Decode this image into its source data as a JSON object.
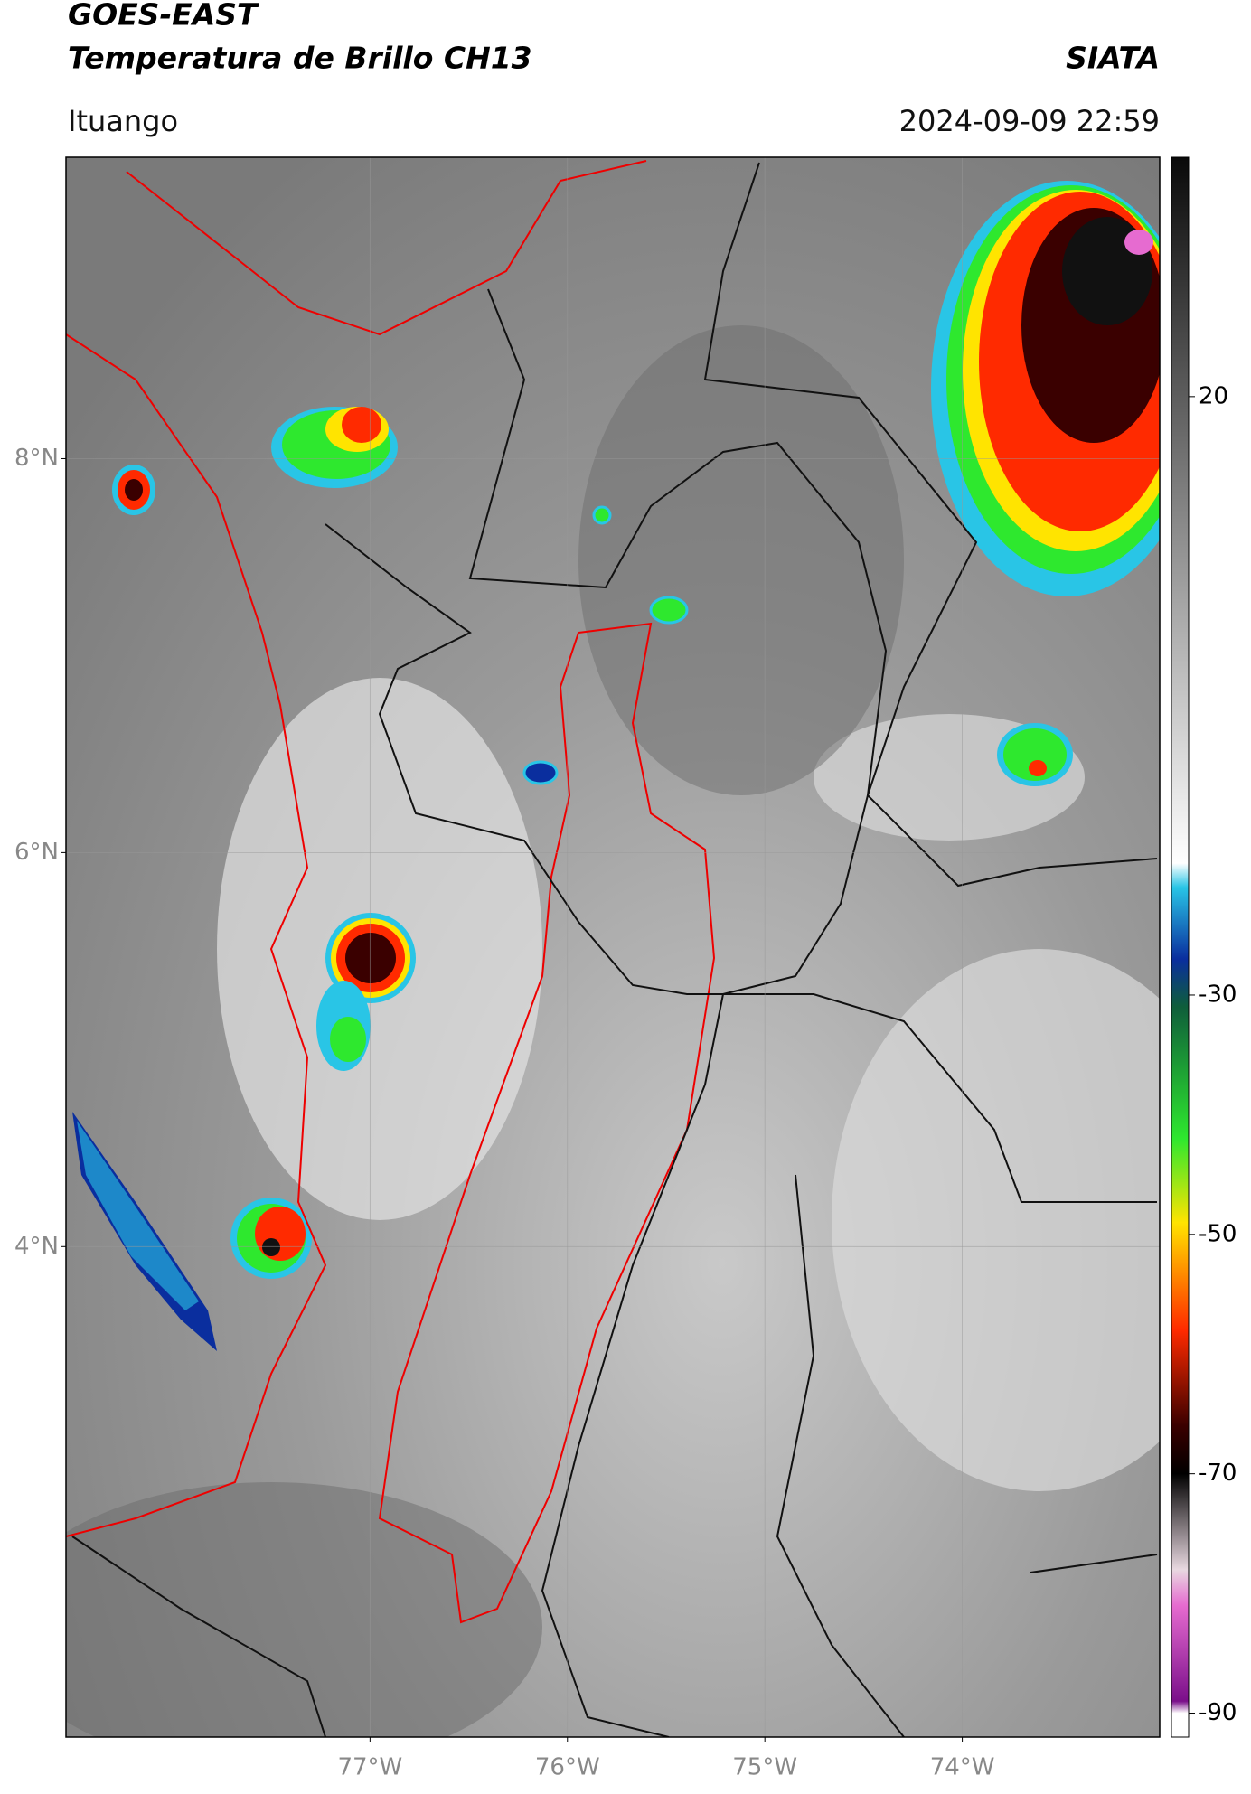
{
  "chart_data": {
    "type": "map",
    "title": "GOES-EAST",
    "subtitle": "Temperatura de Brillo CH13",
    "source": "SIATA",
    "location": "Ituango",
    "datetime": "2024-09-09 22:59",
    "xlim": [
      -78.54,
      -73.0
    ],
    "ylim": [
      1.51,
      9.53
    ],
    "xticks": [
      {
        "value": -77,
        "label": "77°W"
      },
      {
        "value": -76,
        "label": "76°W"
      },
      {
        "value": -75,
        "label": "75°W"
      },
      {
        "value": -74,
        "label": "74°W"
      }
    ],
    "yticks": [
      {
        "value": 4,
        "label": "4°N"
      },
      {
        "value": 6,
        "label": "6°N"
      },
      {
        "value": 8,
        "label": "8°N"
      }
    ],
    "grid": true,
    "colorbar": {
      "clim": [
        -92,
        40
      ],
      "ticks": [
        20,
        -30,
        -50,
        -70,
        -90
      ],
      "stops": [
        {
          "value": 40,
          "color": "#0a0a0a"
        },
        {
          "value": -19,
          "color": "#ffffff"
        },
        {
          "value": -21,
          "color": "#29c5e6"
        },
        {
          "value": -27,
          "color": "#0a2e9e"
        },
        {
          "value": -31,
          "color": "#0f5e3a"
        },
        {
          "value": -42,
          "color": "#2ee82e"
        },
        {
          "value": -49,
          "color": "#ffe400"
        },
        {
          "value": -58,
          "color": "#ff2a00"
        },
        {
          "value": -66,
          "color": "#3a0000"
        },
        {
          "value": -70,
          "color": "#000000"
        },
        {
          "value": -78,
          "color": "#e8d8e0"
        },
        {
          "value": -81,
          "color": "#e66bd0"
        },
        {
          "value": -89,
          "color": "#7a0f8a"
        },
        {
          "value": -90,
          "color": "#ffffff"
        }
      ]
    }
  }
}
